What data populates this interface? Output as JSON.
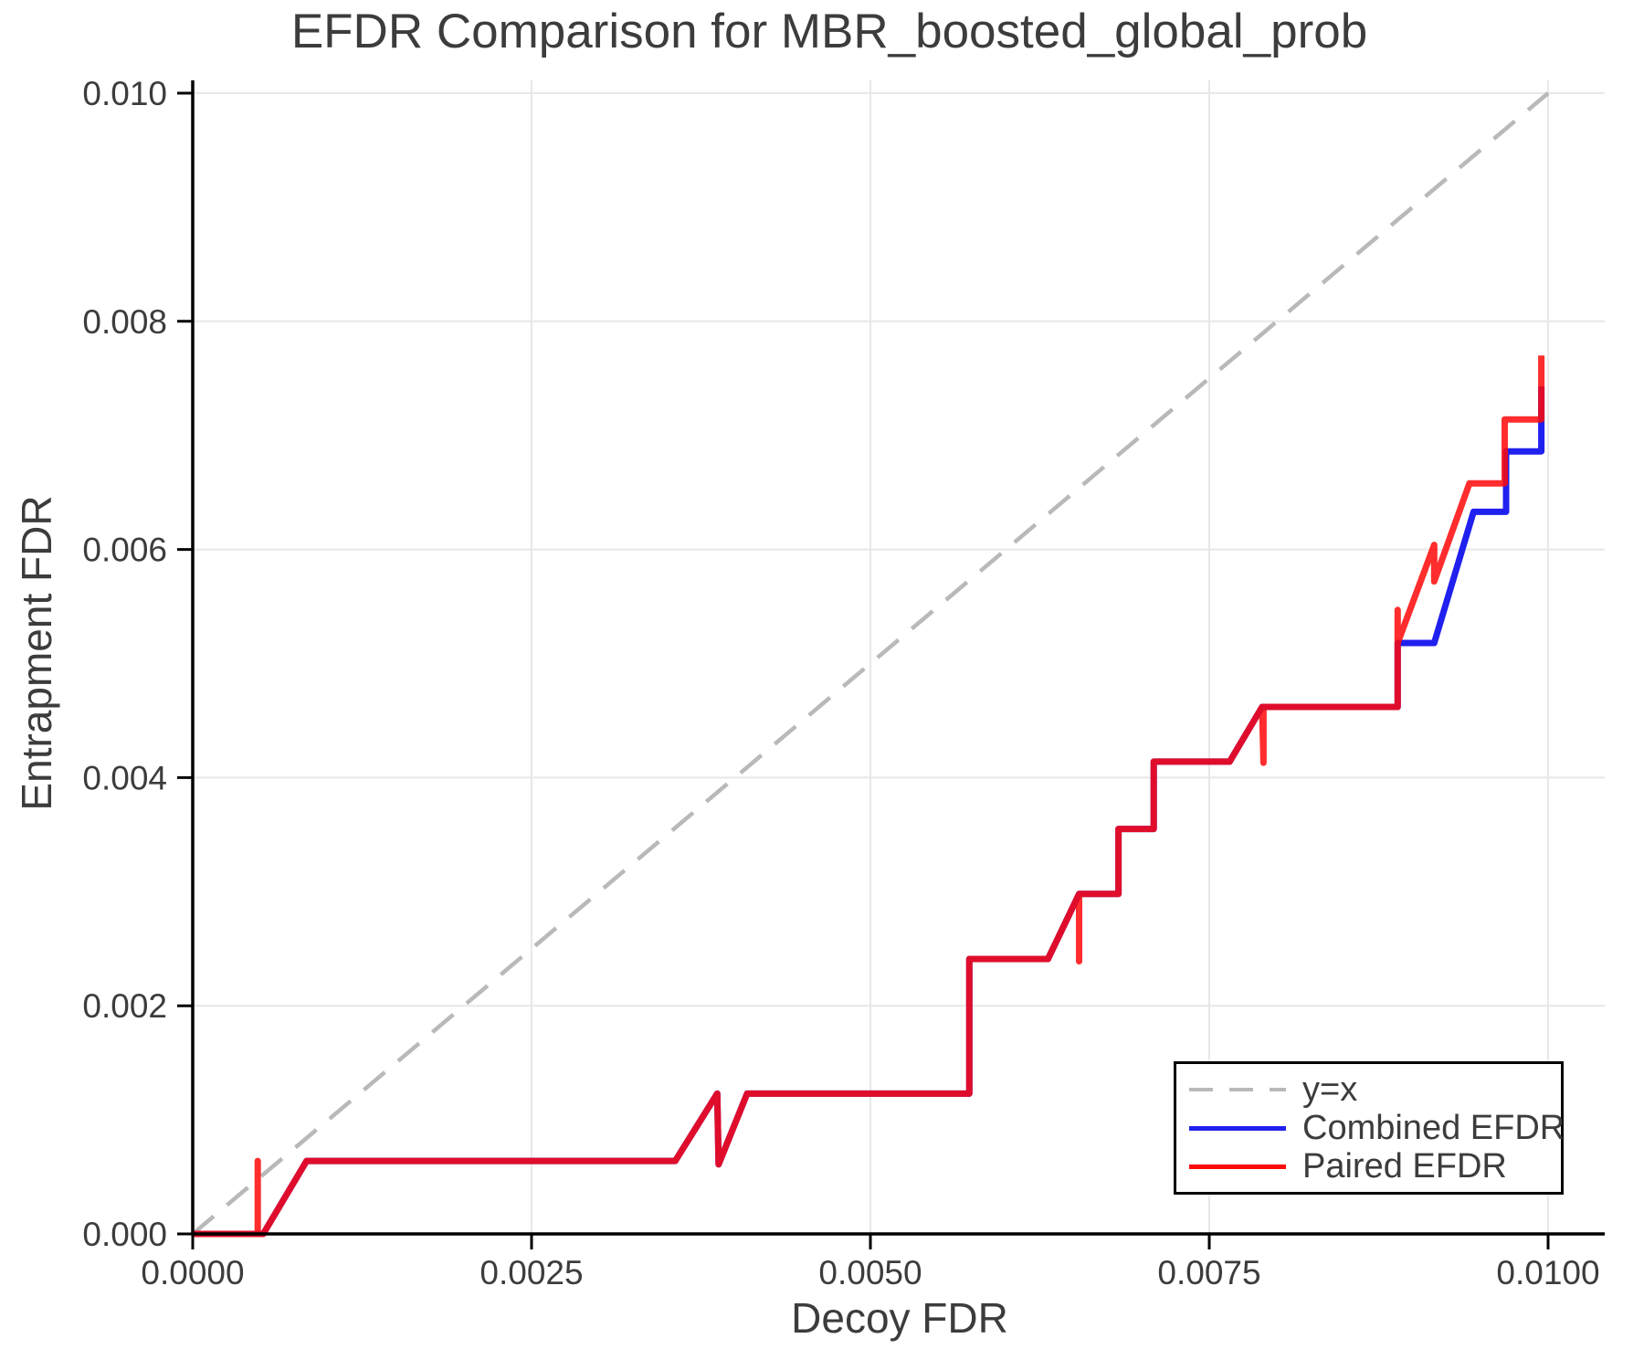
{
  "chart_data": {
    "type": "line",
    "title": "EFDR Comparison for MBR_boosted_global_prob",
    "xlabel": "Decoy FDR",
    "ylabel": "Entrapment FDR",
    "xlim": [
      0.0,
      0.01
    ],
    "ylim": [
      0.0,
      0.01
    ],
    "grid": true,
    "xticks": [
      {
        "v": 0.0,
        "label": "0.0000"
      },
      {
        "v": 0.0025,
        "label": "0.0025"
      },
      {
        "v": 0.005,
        "label": "0.0050"
      },
      {
        "v": 0.0075,
        "label": "0.0075"
      },
      {
        "v": 0.01,
        "label": "0.0100"
      }
    ],
    "yticks": [
      {
        "v": 0.0,
        "label": "0.000"
      },
      {
        "v": 0.002,
        "label": "0.002"
      },
      {
        "v": 0.004,
        "label": "0.004"
      },
      {
        "v": 0.006,
        "label": "0.006"
      },
      {
        "v": 0.008,
        "label": "0.008"
      },
      {
        "v": 0.01,
        "label": "0.010"
      }
    ],
    "legend": {
      "position": "lower right",
      "entries": [
        {
          "label": "y=x",
          "series": "identity"
        },
        {
          "label": "Combined EFDR",
          "series": "combined_efdr"
        },
        {
          "label": "Paired EFDR",
          "series": "paired_efdr"
        }
      ]
    },
    "colors": {
      "identity": "#b9b9b9",
      "combined_efdr": "#2020ef",
      "paired_efdr": "#ff0a0a",
      "grid": "#e8e8e8",
      "axis": "#000000",
      "text": "#3c3c3c"
    },
    "series": [
      {
        "name": "y=x",
        "key": "identity",
        "style": "dashed",
        "width": 4.5,
        "opacity": 1.0,
        "points": [
          [
            0.0,
            0.0
          ],
          [
            0.01,
            0.01
          ]
        ]
      },
      {
        "name": "Combined EFDR",
        "key": "combined_efdr",
        "style": "solid",
        "width": 7,
        "opacity": 1.0,
        "points": [
          [
            0.0,
            0.0
          ],
          [
            0.00052,
            0.0
          ],
          [
            0.00084,
            0.00064
          ],
          [
            0.00356,
            0.00064
          ],
          [
            0.00387,
            0.00123
          ],
          [
            0.00388,
            0.00061
          ],
          [
            0.00409,
            0.00123
          ],
          [
            0.00573,
            0.00123
          ],
          [
            0.00573,
            0.00241
          ],
          [
            0.00631,
            0.00241
          ],
          [
            0.00654,
            0.00298
          ],
          [
            0.00683,
            0.00298
          ],
          [
            0.00683,
            0.00355
          ],
          [
            0.00709,
            0.00355
          ],
          [
            0.00709,
            0.00414
          ],
          [
            0.00765,
            0.00414
          ],
          [
            0.00789,
            0.00462
          ],
          [
            0.00889,
            0.00462
          ],
          [
            0.00889,
            0.00518
          ],
          [
            0.00916,
            0.00518
          ],
          [
            0.00945,
            0.00633
          ],
          [
            0.00969,
            0.00633
          ],
          [
            0.00969,
            0.00686
          ],
          [
            0.00995,
            0.00686
          ],
          [
            0.00995,
            0.00743
          ]
        ]
      },
      {
        "name": "Paired EFDR",
        "key": "paired_efdr",
        "style": "solid",
        "width": 7,
        "opacity": 0.86,
        "points": [
          [
            0.0,
            0.0
          ],
          [
            0.00048,
            0.0
          ],
          [
            0.00048,
            0.00064
          ],
          [
            0.00048,
            0.0
          ],
          [
            0.00052,
            0.0
          ],
          [
            0.00084,
            0.00064
          ],
          [
            0.00356,
            0.00064
          ],
          [
            0.00387,
            0.00123
          ],
          [
            0.00388,
            0.00061
          ],
          [
            0.00409,
            0.00123
          ],
          [
            0.00573,
            0.00123
          ],
          [
            0.00573,
            0.00241
          ],
          [
            0.00631,
            0.00241
          ],
          [
            0.00654,
            0.00298
          ],
          [
            0.00654,
            0.00239
          ],
          [
            0.00654,
            0.00298
          ],
          [
            0.00683,
            0.00298
          ],
          [
            0.00683,
            0.00355
          ],
          [
            0.00709,
            0.00355
          ],
          [
            0.00709,
            0.00414
          ],
          [
            0.00765,
            0.00414
          ],
          [
            0.00789,
            0.00462
          ],
          [
            0.0079,
            0.00413
          ],
          [
            0.0079,
            0.00462
          ],
          [
            0.00889,
            0.00462
          ],
          [
            0.00889,
            0.00547
          ],
          [
            0.00889,
            0.00518
          ],
          [
            0.00916,
            0.00604
          ],
          [
            0.00916,
            0.00572
          ],
          [
            0.00942,
            0.00658
          ],
          [
            0.00968,
            0.00658
          ],
          [
            0.00968,
            0.00714
          ],
          [
            0.00995,
            0.00714
          ],
          [
            0.00995,
            0.0077
          ]
        ]
      }
    ]
  }
}
